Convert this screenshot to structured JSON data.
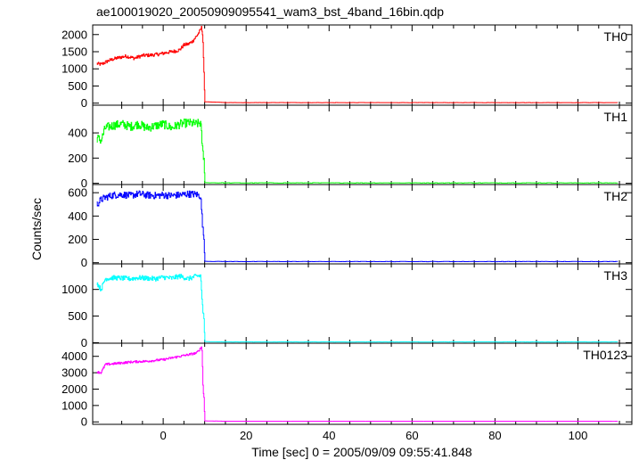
{
  "chart_data": {
    "type": "line",
    "title": "ae100019020_20050909095541_wam3_bst_4band_16bin.qdp",
    "xlabel": "Time [sec] 0 = 2005/09/09 09:55:41.848",
    "ylabel": "Counts/sec",
    "xlim": [
      -17,
      113
    ],
    "x_ticks": [
      0,
      20,
      40,
      60,
      80,
      100
    ],
    "x_tick_labels": [
      "0",
      "20",
      "40",
      "60",
      "80",
      "100"
    ],
    "legend": "none",
    "grid": false,
    "series": [
      {
        "name": "TH0",
        "color": "#ff0000",
        "ylim": [
          -60,
          2280
        ],
        "y_ticks": [
          0,
          500,
          1000,
          1500,
          2000
        ],
        "y_tick_labels": [
          "0",
          "500",
          "1000",
          "1500",
          "2000"
        ],
        "x": [
          -16,
          -15,
          -13,
          -11,
          -9,
          -7,
          -5,
          -3,
          -1,
          1,
          3,
          4,
          5,
          6,
          7,
          8,
          8.8,
          9.2,
          9.5,
          9.8,
          10,
          15,
          30,
          50,
          70,
          90,
          110
        ],
        "values": [
          1150,
          1130,
          1250,
          1320,
          1370,
          1310,
          1390,
          1400,
          1430,
          1480,
          1520,
          1560,
          1700,
          1720,
          1800,
          1950,
          2100,
          2200,
          2000,
          900,
          40,
          15,
          15,
          15,
          15,
          15,
          15
        ],
        "noise": 50
      },
      {
        "name": "TH1",
        "color": "#00ff00",
        "ylim": [
          -10,
          620
        ],
        "y_ticks": [
          0,
          200,
          400
        ],
        "y_tick_labels": [
          "0",
          "200",
          "400"
        ],
        "x": [
          -16,
          -15,
          -14,
          -12,
          -10,
          -8,
          -6,
          -4,
          -2,
          0,
          2,
          4,
          6,
          8,
          9,
          9.5,
          9.8,
          10,
          15,
          30,
          50,
          70,
          90,
          110
        ],
        "values": [
          360,
          340,
          440,
          460,
          470,
          450,
          470,
          440,
          455,
          470,
          440,
          470,
          480,
          470,
          480,
          250,
          200,
          5,
          3,
          3,
          3,
          3,
          3,
          3
        ],
        "noise": 35
      },
      {
        "name": "TH2",
        "color": "#0000ff",
        "ylim": [
          -10,
          670
        ],
        "y_ticks": [
          0,
          200,
          400,
          600
        ],
        "y_tick_labels": [
          "0",
          "200",
          "400",
          "600"
        ],
        "x": [
          -16,
          -15,
          -14,
          -12,
          -10,
          -8,
          -6,
          -4,
          -2,
          0,
          2,
          4,
          6,
          8,
          9,
          9.5,
          9.8,
          10,
          15,
          30,
          50,
          70,
          90,
          110
        ],
        "values": [
          500,
          540,
          560,
          580,
          585,
          575,
          590,
          580,
          575,
          580,
          575,
          580,
          590,
          585,
          570,
          300,
          200,
          12,
          10,
          10,
          10,
          10,
          10,
          10
        ],
        "noise": 30
      },
      {
        "name": "TH3",
        "color": "#00ffff",
        "ylim": [
          -10,
          1480
        ],
        "y_ticks": [
          0,
          500,
          1000
        ],
        "y_tick_labels": [
          "0",
          "500",
          "1000"
        ],
        "x": [
          -16,
          -15.5,
          -15,
          -14,
          -12,
          -10,
          -8,
          -6,
          -4,
          -2,
          0,
          2,
          4,
          6,
          8,
          9,
          9.5,
          9.8,
          10,
          15,
          30,
          50,
          70,
          90,
          110
        ],
        "values": [
          1130,
          1050,
          1000,
          1200,
          1220,
          1210,
          1200,
          1220,
          1210,
          1200,
          1230,
          1210,
          1250,
          1200,
          1250,
          1260,
          600,
          450,
          20,
          15,
          15,
          15,
          15,
          15,
          15
        ],
        "noise": 45
      },
      {
        "name": "TH0123",
        "color": "#ff00ff",
        "ylim": [
          -150,
          4800
        ],
        "y_ticks": [
          0,
          1000,
          2000,
          3000,
          4000
        ],
        "y_tick_labels": [
          "0",
          "1000",
          "2000",
          "3000",
          "4000"
        ],
        "x": [
          -16,
          -15,
          -14,
          -12,
          -10,
          -8,
          -6,
          -4,
          -2,
          0,
          2,
          4,
          6,
          8,
          9,
          9.3,
          9.6,
          9.8,
          10,
          15,
          30,
          50,
          70,
          90,
          110
        ],
        "values": [
          3050,
          3000,
          3500,
          3550,
          3600,
          3650,
          3680,
          3700,
          3750,
          3800,
          3900,
          4000,
          4100,
          4200,
          4500,
          4600,
          1900,
          1500,
          60,
          40,
          40,
          40,
          40,
          40,
          40
        ],
        "noise": 70
      }
    ]
  }
}
